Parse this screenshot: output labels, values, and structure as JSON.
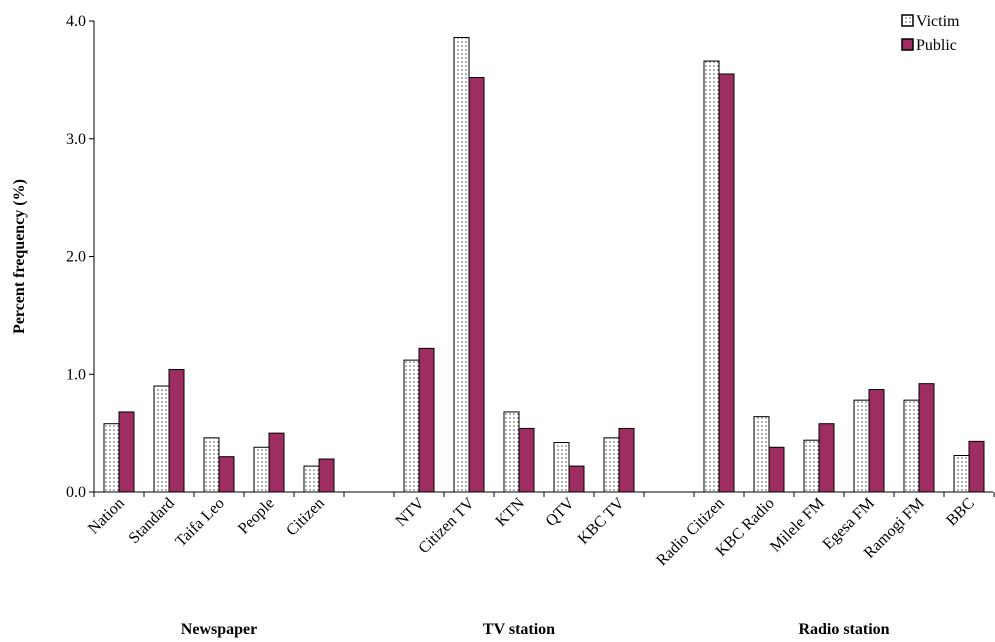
{
  "chart_data": {
    "type": "bar",
    "ylabel": "Percent frequency (%)",
    "ylim": [
      0,
      4
    ],
    "yticks": [
      "0.0",
      "1.0",
      "2.0",
      "3.0",
      "4.0"
    ],
    "groups": [
      {
        "label": "Newspaper",
        "categories": [
          "Nation",
          "Standard",
          "Taifa Leo",
          "People",
          "Citizen"
        ]
      },
      {
        "label": "TV station",
        "categories": [
          "NTV",
          "Citizen TV",
          "KTN",
          "QTV",
          "KBC TV"
        ]
      },
      {
        "label": "Radio station",
        "categories": [
          "Radio Citizen",
          "KBC Radio",
          "Milele FM",
          "Egesa FM",
          "Ramogi FM",
          "BBC"
        ]
      }
    ],
    "series": [
      {
        "name": "Victim",
        "color": "#ffffff",
        "pattern": "dotted",
        "values": [
          0.58,
          0.9,
          0.46,
          0.38,
          0.22,
          1.12,
          3.86,
          0.68,
          0.42,
          0.46,
          3.66,
          0.64,
          0.44,
          0.78,
          0.78,
          0.31
        ]
      },
      {
        "name": "Public",
        "color": "#9e2e61",
        "values": [
          0.68,
          1.04,
          0.3,
          0.5,
          0.28,
          1.22,
          3.52,
          0.54,
          0.22,
          0.54,
          3.55,
          0.38,
          0.58,
          0.87,
          0.92,
          0.43
        ]
      }
    ],
    "legend": "top-right",
    "grid": false
  }
}
